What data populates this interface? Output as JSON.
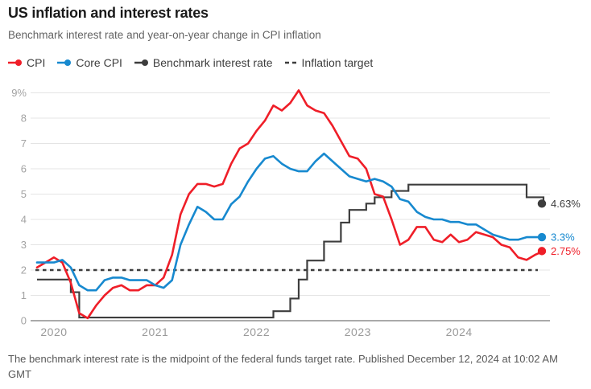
{
  "header": {
    "title": "US inflation and interest rates",
    "subtitle": "Benchmark interest rate and year-on-year change in CPI inflation"
  },
  "legend": [
    {
      "label": "CPI",
      "color": "#ef1e28",
      "marker": "line-dot"
    },
    {
      "label": "Core CPI",
      "color": "#1789cf",
      "marker": "line-dot"
    },
    {
      "label": "Benchmark interest rate",
      "color": "#3d3d3d",
      "marker": "line-dot"
    },
    {
      "label": "Inflation target",
      "color": "#3d3d3d",
      "marker": "dashes"
    }
  ],
  "footer": {
    "note": "The benchmark interest rate is the midpoint of the federal funds target rate. Published December 12, 2024 at 10:02 AM GMT"
  },
  "chart_data": {
    "type": "line",
    "title": "US inflation and interest rates",
    "interval": "monthly",
    "start_month": "2019-11",
    "end_month": "2024-11",
    "x_tick_labels": [
      "2020",
      "2021",
      "2022",
      "2023",
      "2024"
    ],
    "y_ticks": [
      0,
      1,
      2,
      3,
      4,
      5,
      6,
      7,
      8,
      9
    ],
    "y_tick_labels": [
      "0",
      "1",
      "2",
      "3",
      "4",
      "5",
      "6",
      "7",
      "8",
      "9%"
    ],
    "ylim": [
      0,
      9
    ],
    "grid": "horizontal",
    "legend_position": "top",
    "inflation_target": 2,
    "series": [
      {
        "key": "benchmark-interest-rate",
        "name": "Benchmark interest rate",
        "color": "#3d3d3d",
        "style": "step",
        "end_label": "4.63%",
        "values": [
          1.625,
          1.625,
          1.625,
          1.625,
          1.125,
          0.125,
          0.125,
          0.125,
          0.125,
          0.125,
          0.125,
          0.125,
          0.125,
          0.125,
          0.125,
          0.125,
          0.125,
          0.125,
          0.125,
          0.125,
          0.125,
          0.125,
          0.125,
          0.125,
          0.125,
          0.125,
          0.125,
          0.125,
          0.375,
          0.375,
          0.875,
          1.625,
          2.375,
          2.375,
          3.125,
          3.125,
          3.875,
          4.375,
          4.375,
          4.625,
          4.875,
          4.875,
          5.125,
          5.125,
          5.375,
          5.375,
          5.375,
          5.375,
          5.375,
          5.375,
          5.375,
          5.375,
          5.375,
          5.375,
          5.375,
          5.375,
          5.375,
          5.375,
          4.875,
          4.875,
          4.625
        ]
      },
      {
        "key": "cpi",
        "name": "CPI",
        "color": "#ef1e28",
        "style": "line",
        "end_label": "2.75%",
        "values": [
          2.1,
          2.3,
          2.5,
          2.3,
          1.5,
          0.3,
          0.1,
          0.6,
          1.0,
          1.3,
          1.4,
          1.2,
          1.2,
          1.4,
          1.4,
          1.7,
          2.6,
          4.2,
          5.0,
          5.4,
          5.4,
          5.3,
          5.4,
          6.2,
          6.8,
          7.0,
          7.5,
          7.9,
          8.5,
          8.3,
          8.6,
          9.1,
          8.5,
          8.3,
          8.2,
          7.7,
          7.1,
          6.5,
          6.4,
          6.0,
          5.0,
          4.9,
          4.0,
          3.0,
          3.2,
          3.7,
          3.7,
          3.2,
          3.1,
          3.4,
          3.1,
          3.2,
          3.5,
          3.4,
          3.3,
          3.0,
          2.9,
          2.5,
          2.4,
          2.6,
          2.75
        ]
      },
      {
        "key": "core-cpi",
        "name": "Core CPI",
        "color": "#1789cf",
        "style": "line",
        "end_label": "3.3%",
        "values": [
          2.3,
          2.3,
          2.3,
          2.4,
          2.1,
          1.4,
          1.2,
          1.2,
          1.6,
          1.7,
          1.7,
          1.6,
          1.6,
          1.6,
          1.4,
          1.3,
          1.6,
          3.0,
          3.8,
          4.5,
          4.3,
          4.0,
          4.0,
          4.6,
          4.9,
          5.5,
          6.0,
          6.4,
          6.5,
          6.2,
          6.0,
          5.9,
          5.9,
          6.3,
          6.6,
          6.3,
          6.0,
          5.7,
          5.6,
          5.5,
          5.6,
          5.5,
          5.3,
          4.8,
          4.7,
          4.3,
          4.1,
          4.0,
          4.0,
          3.9,
          3.9,
          3.8,
          3.8,
          3.6,
          3.4,
          3.3,
          3.2,
          3.2,
          3.3,
          3.3,
          3.3
        ]
      }
    ]
  }
}
